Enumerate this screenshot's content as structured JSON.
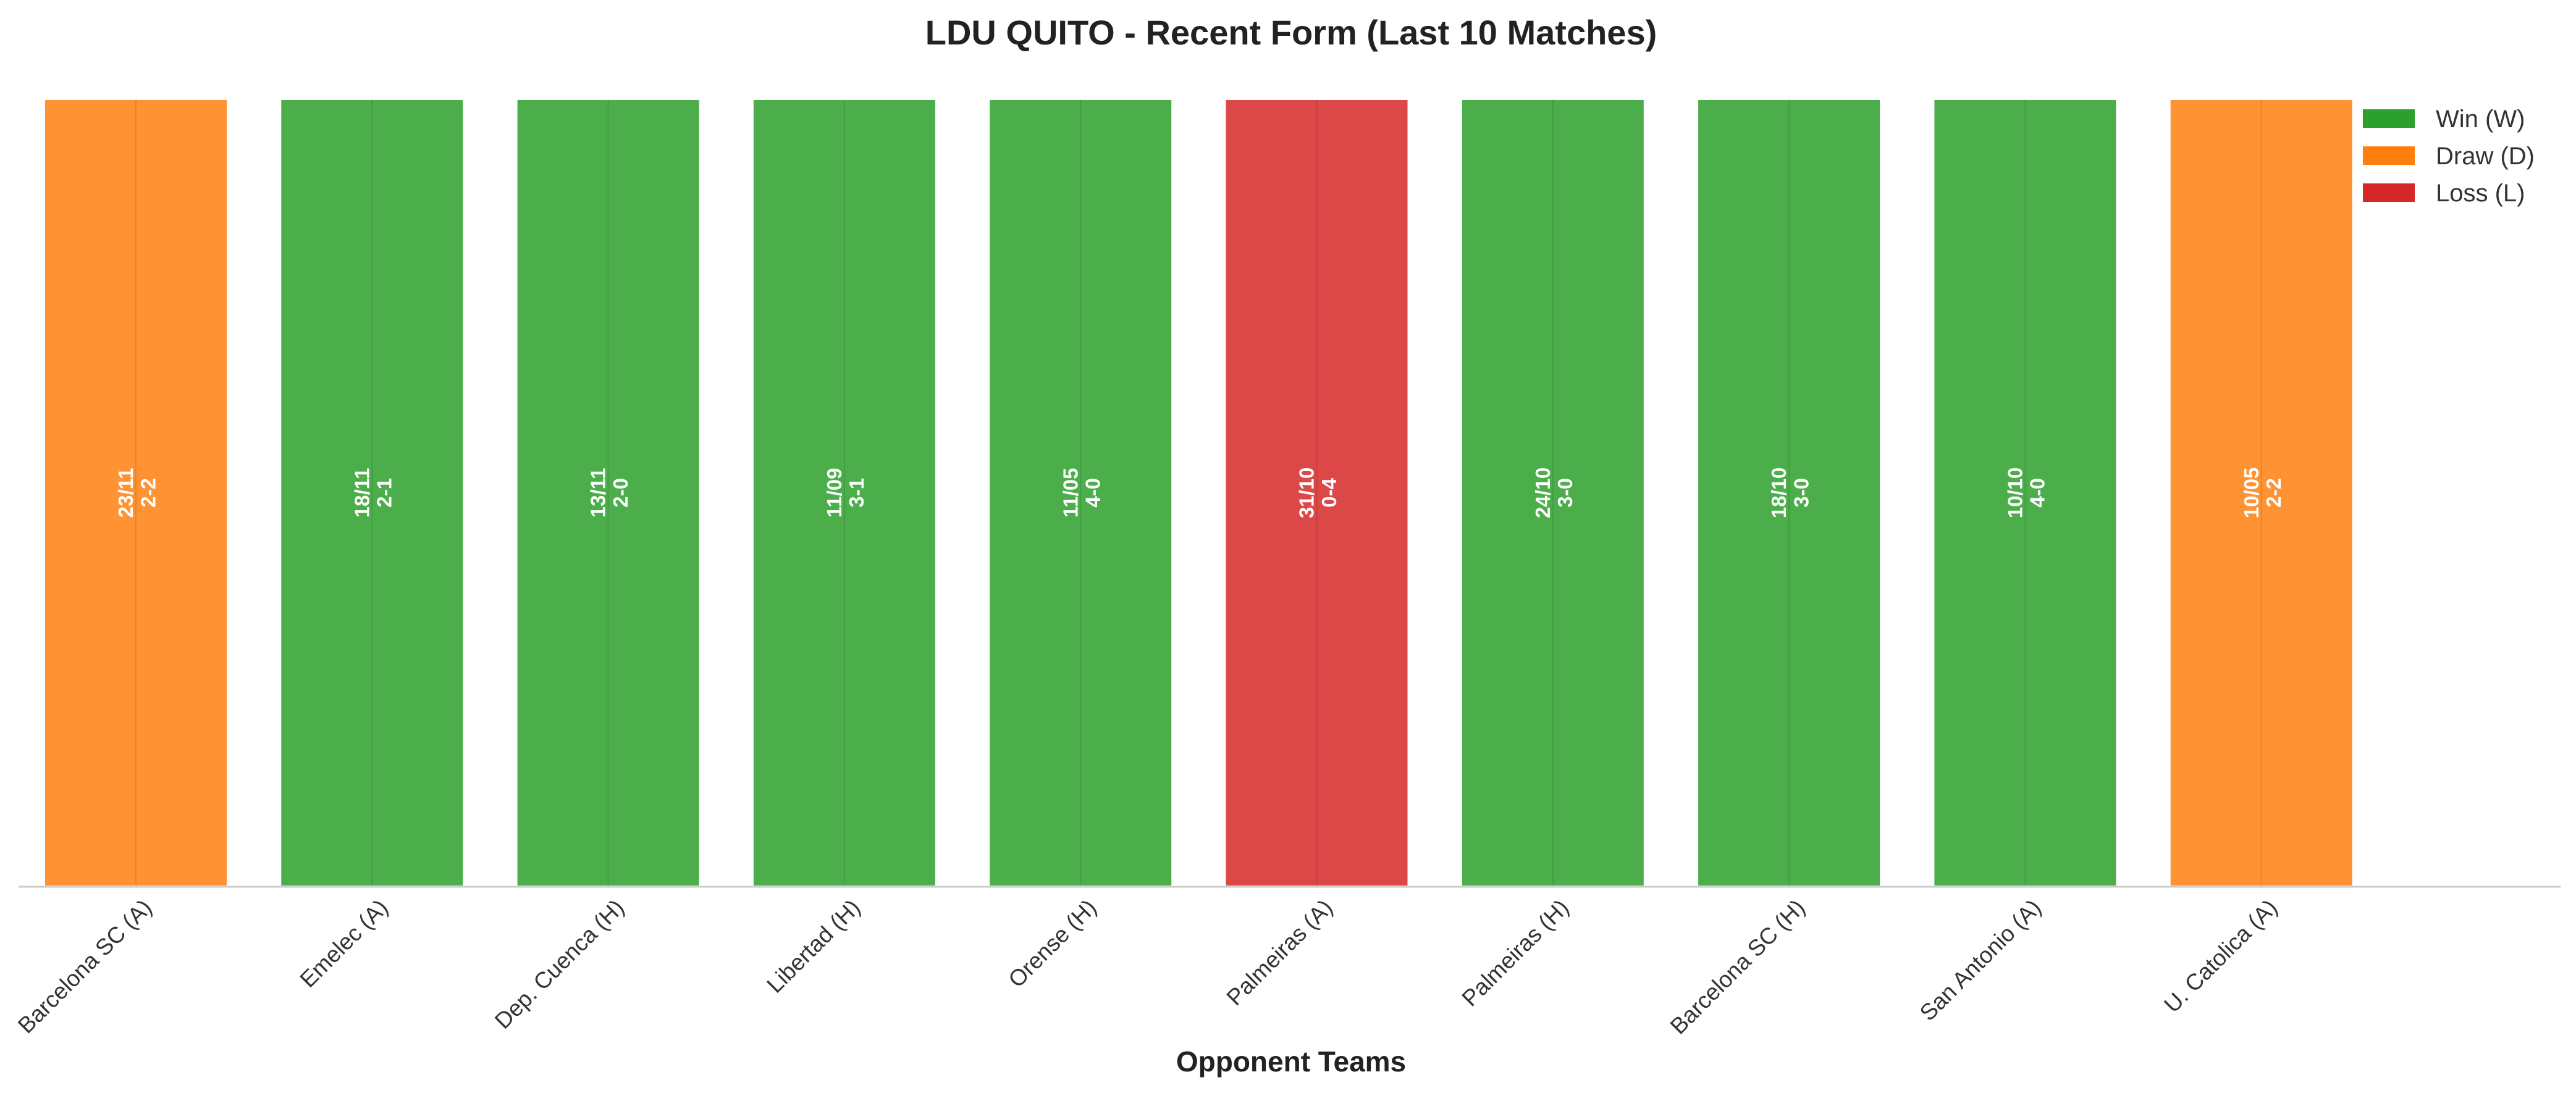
{
  "chart_data": {
    "type": "bar",
    "title": "LDU QUITO - Recent Form (Last 10 Matches)",
    "xlabel": "Opponent Teams",
    "ylabel": "",
    "grid": false,
    "legend_position": "top-right",
    "categories": [
      "Barcelona SC (A)",
      "Emelec (A)",
      "Dep. Cuenca (H)",
      "Libertad (H)",
      "Orense (H)",
      "Palmeiras (A)",
      "Palmeiras (H)",
      "Barcelona SC (H)",
      "San Antonio (A)",
      "U. Catolica (A)"
    ],
    "values": [
      1,
      1,
      1,
      1,
      1,
      1,
      1,
      1,
      1,
      1
    ],
    "results": [
      "D",
      "W",
      "W",
      "W",
      "W",
      "L",
      "W",
      "W",
      "W",
      "D"
    ],
    "dates": [
      "23/11",
      "18/11",
      "13/11",
      "11/09",
      "11/05",
      "31/10",
      "24/10",
      "18/10",
      "10/10",
      "10/05"
    ],
    "scores": [
      "2-2",
      "2-1",
      "2-0",
      "3-1",
      "4-0",
      "0-4",
      "3-0",
      "3-0",
      "4-0",
      "2-2"
    ],
    "legend": [
      {
        "key": "W",
        "label": "Win (W)",
        "color": "#2ca02c"
      },
      {
        "key": "D",
        "label": "Draw (D)",
        "color": "#ff7f0e"
      },
      {
        "key": "L",
        "label": "Loss (L)",
        "color": "#d62728"
      }
    ]
  }
}
